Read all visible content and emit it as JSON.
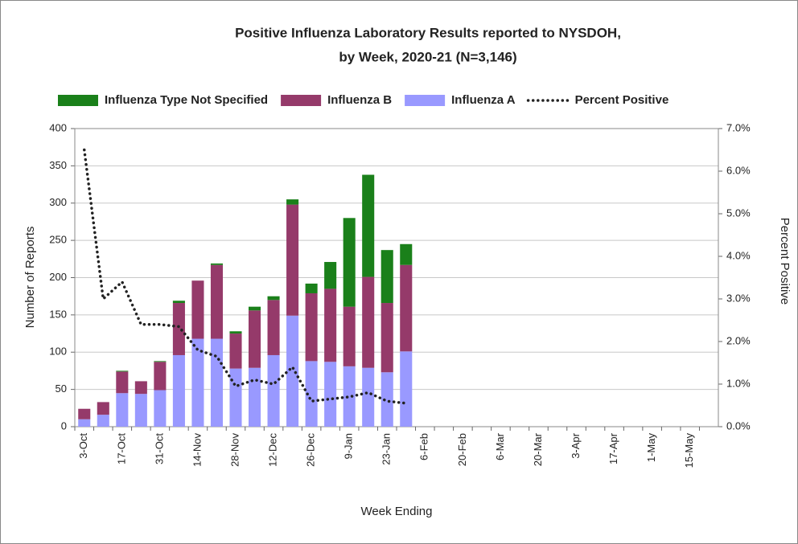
{
  "chart_data": {
    "type": "bar",
    "stacked": true,
    "title": "Positive Influenza Laboratory Results reported to NYSDOH,",
    "subtitle": "by Week, 2020-21 (N=3,146)",
    "x_label": "Week Ending",
    "y_label": "Number of Reports",
    "y2_label": "Percent Positive",
    "categories": [
      "3-Oct",
      null,
      "17-Oct",
      null,
      "31-Oct",
      null,
      "14-Nov",
      null,
      "28-Nov",
      null,
      "12-Dec",
      null,
      "26-Dec",
      null,
      "9-Jan",
      null,
      "23-Jan",
      null,
      "6-Feb",
      null,
      "20-Feb",
      null,
      "6-Mar",
      null,
      "20-Mar",
      null,
      "3-Apr",
      null,
      "17-Apr",
      null,
      "1-May",
      null,
      "15-May",
      null
    ],
    "series": [
      {
        "name": "Influenza A",
        "color": "#9999ff",
        "values": [
          10,
          16,
          45,
          44,
          49,
          96,
          118,
          118,
          78,
          79,
          96,
          149,
          88,
          87,
          81,
          79,
          73,
          101,
          null,
          null,
          null,
          null,
          null,
          null,
          null,
          null,
          null,
          null,
          null,
          null,
          null,
          null,
          null,
          null
        ]
      },
      {
        "name": "Influenza B",
        "color": "#953a6a",
        "values": [
          14,
          17,
          29,
          17,
          38,
          70,
          78,
          99,
          47,
          77,
          74,
          149,
          91,
          98,
          80,
          122,
          93,
          116,
          null,
          null,
          null,
          null,
          null,
          null,
          null,
          null,
          null,
          null,
          null,
          null,
          null,
          null,
          null,
          null
        ]
      },
      {
        "name": "Influenza Type Not Specified",
        "color": "#1a801a",
        "values": [
          0,
          0,
          1,
          0,
          1,
          3,
          0,
          2,
          3,
          5,
          5,
          7,
          13,
          36,
          119,
          137,
          71,
          28,
          null,
          null,
          null,
          null,
          null,
          null,
          null,
          null,
          null,
          null,
          null,
          null,
          null,
          null,
          null,
          null
        ]
      },
      {
        "name": "Percent Positive",
        "type": "line",
        "axis": "y2",
        "color": "#222222",
        "style": "dotted",
        "values": [
          6.5,
          3.0,
          3.4,
          2.4,
          2.4,
          2.35,
          1.8,
          1.65,
          0.95,
          1.1,
          1.0,
          1.4,
          0.6,
          0.65,
          0.7,
          0.8,
          0.6,
          0.55,
          null,
          null,
          null,
          null,
          null,
          null,
          null,
          null,
          null,
          null,
          null,
          null,
          null,
          null,
          null,
          null
        ]
      }
    ],
    "legend_order": [
      2,
      1,
      0,
      3
    ],
    "legend": "top",
    "grid": true,
    "ylim": [
      0,
      400
    ],
    "yticks": [
      0,
      50,
      100,
      150,
      200,
      250,
      300,
      350,
      400
    ],
    "y2lim": [
      0,
      7
    ],
    "y2ticks": [
      {
        "value": 0,
        "label": "0.0%"
      },
      {
        "value": 1,
        "label": "1.0%"
      },
      {
        "value": 2,
        "label": "2.0%"
      },
      {
        "value": 3,
        "label": "3.0%"
      },
      {
        "value": 4,
        "label": "4.0%"
      },
      {
        "value": 5,
        "label": "5.0%"
      },
      {
        "value": 6,
        "label": "6.0%"
      },
      {
        "value": 7,
        "label": "7.0%"
      }
    ]
  }
}
